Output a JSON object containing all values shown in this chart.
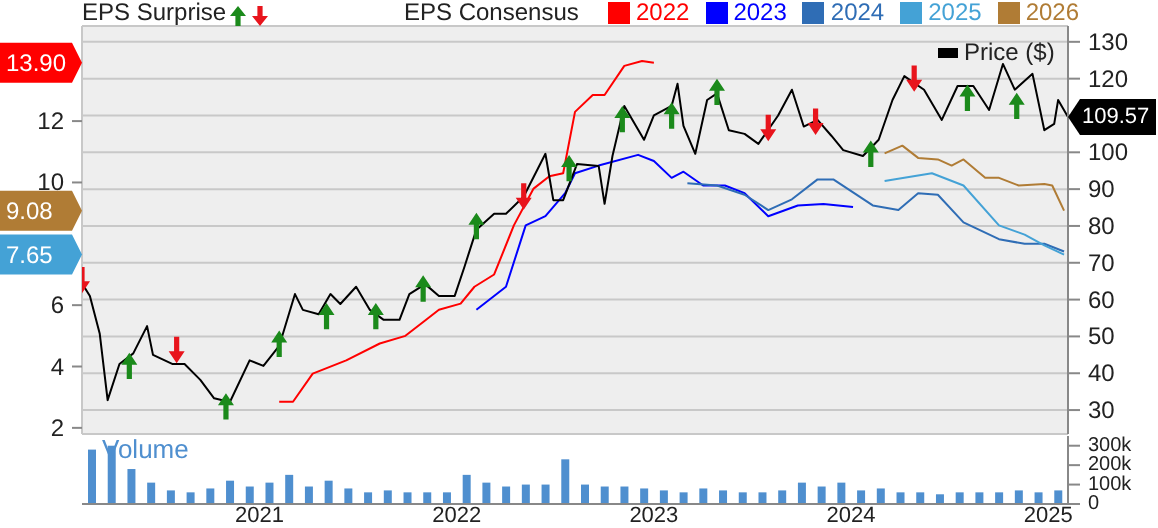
{
  "chart_data": [
    {
      "type": "line",
      "title": "EPS Surprise",
      "legend_title": "EPS Consensus",
      "legend": "top",
      "grid": true,
      "tick_labels": "y",
      "xlim": [
        2020.1,
        2025.1
      ],
      "xticks": [
        2021,
        2022,
        2023,
        2024,
        2025
      ],
      "ylim": [
        1.8,
        15.1
      ],
      "yticks": [
        2,
        4,
        6,
        10,
        12
      ],
      "y2lim": [
        23.5,
        134.3
      ],
      "y2ticks": [
        30,
        40,
        50,
        60,
        70,
        80,
        90,
        100,
        {
          "value": 110,
          "label": null
        },
        120,
        130
      ],
      "annotations": [
        "13.90",
        "9.08",
        "7.65"
      ],
      "series": [
        {
          "name": "2022",
          "color": "#ff0000",
          "x": [
            2021.1,
            2021.17,
            2021.27,
            2021.44,
            2021.61,
            2021.74,
            2021.84,
            2021.91,
            2022.02,
            2022.09,
            2022.19,
            2022.29,
            2022.39,
            2022.47,
            2022.54,
            2022.6,
            2022.69,
            2022.75,
            2022.85,
            2022.94,
            2023.0
          ],
          "values": [
            2.85,
            2.85,
            3.77,
            4.2,
            4.75,
            5.0,
            5.5,
            5.85,
            6.05,
            6.6,
            7.0,
            8.6,
            9.8,
            10.2,
            10.3,
            12.3,
            12.85,
            12.85,
            13.8,
            13.96,
            13.9
          ]
        },
        {
          "name": "2023",
          "color": "#0000ff",
          "x": [
            2022.1,
            2022.25,
            2022.35,
            2022.45,
            2022.55,
            2022.6,
            2022.72,
            2022.92,
            2023.0,
            2023.09,
            2023.15,
            2023.25,
            2023.36,
            2023.46,
            2023.58,
            2023.73,
            2023.86,
            2024.01
          ],
          "values": [
            5.85,
            6.6,
            8.6,
            8.9,
            9.65,
            10.3,
            10.55,
            10.9,
            10.7,
            10.15,
            10.35,
            9.9,
            9.9,
            9.65,
            8.9,
            9.25,
            9.3,
            9.2
          ]
        },
        {
          "name": "2024",
          "color": "#2f6db5",
          "x": [
            2023.17,
            2023.32,
            2023.46,
            2023.58,
            2023.7,
            2023.83,
            2023.91,
            2024.11,
            2024.24,
            2024.34,
            2024.44,
            2024.57,
            2024.75,
            2024.88,
            2024.98,
            2025.08
          ],
          "values": [
            9.97,
            9.9,
            9.6,
            9.1,
            9.45,
            10.1,
            10.1,
            9.25,
            9.1,
            9.65,
            9.6,
            8.7,
            8.15,
            8.0,
            8.0,
            7.75
          ]
        },
        {
          "name": "2025",
          "color": "#44a2d6",
          "x": [
            2024.17,
            2024.27,
            2024.41,
            2024.57,
            2024.75,
            2024.88,
            2024.98,
            2025.08
          ],
          "values": [
            10.05,
            10.15,
            10.3,
            9.9,
            8.6,
            8.3,
            7.95,
            7.65
          ]
        },
        {
          "name": "2026",
          "color": "#b07c35",
          "x": [
            2024.17,
            2024.26,
            2024.34,
            2024.44,
            2024.51,
            2024.57,
            2024.68,
            2024.75,
            2024.85,
            2024.98,
            2025.02,
            2025.08
          ],
          "values": [
            10.95,
            11.2,
            10.8,
            10.75,
            10.55,
            10.75,
            10.15,
            10.15,
            9.9,
            9.95,
            9.9,
            9.08
          ]
        },
        {
          "name": "Price ($)",
          "color": "#000000",
          "axis": "y2",
          "x": [
            2020.1,
            2020.14,
            2020.19,
            2020.23,
            2020.29,
            2020.36,
            2020.43,
            2020.46,
            2020.56,
            2020.62,
            2020.7,
            2020.77,
            2020.85,
            2020.95,
            2021.02,
            2021.1,
            2021.18,
            2021.22,
            2021.3,
            2021.36,
            2021.41,
            2021.49,
            2021.56,
            2021.63,
            2021.71,
            2021.76,
            2021.84,
            2021.91,
            2021.99,
            2022.04,
            2022.1,
            2022.19,
            2022.25,
            2022.34,
            2022.45,
            2022.49,
            2022.54,
            2022.61,
            2022.72,
            2022.75,
            2022.79,
            2022.85,
            2022.95,
            2023.0,
            2023.09,
            2023.12,
            2023.15,
            2023.21,
            2023.27,
            2023.32,
            2023.38,
            2023.46,
            2023.53,
            2023.63,
            2023.7,
            2023.76,
            2023.83,
            2023.9,
            2023.96,
            2024.06,
            2024.14,
            2024.21,
            2024.27,
            2024.37,
            2024.46,
            2024.54,
            2024.62,
            2024.7,
            2024.77,
            2024.83,
            2024.92,
            2024.98,
            2025.03,
            2025.05,
            2025.1
          ],
          "values": [
            64.4,
            61,
            50.7,
            32.7,
            42.5,
            45.4,
            52.8,
            45,
            42.5,
            42.5,
            38.2,
            33.2,
            32.2,
            43.5,
            42,
            47.4,
            61.5,
            57.2,
            56,
            61.5,
            58.8,
            63.5,
            57.2,
            54.5,
            54.5,
            61.5,
            64.2,
            61,
            61,
            69,
            79,
            83.3,
            83.3,
            88,
            99.6,
            87,
            87,
            96.8,
            96.3,
            86,
            99,
            112.6,
            103.4,
            110,
            112.6,
            118.6,
            107.2,
            99.6,
            114.2,
            116,
            106,
            105,
            102.3,
            110,
            117,
            107,
            108.8,
            104.5,
            100.6,
            99,
            103.4,
            114.2,
            120.7,
            117,
            108.8,
            118,
            118,
            111.5,
            124,
            117,
            121.3,
            106,
            107.7,
            114.2,
            109.57
          ],
          "value_labels": [
            null,
            null,
            null,
            null,
            null,
            null,
            null,
            null,
            null,
            null,
            null,
            null,
            null,
            null,
            null,
            null,
            null,
            null,
            null,
            null,
            null,
            null,
            null,
            null,
            null,
            null,
            null,
            null,
            null,
            null,
            null,
            null,
            null,
            null,
            null,
            null,
            null,
            null,
            null,
            null,
            null,
            null,
            null,
            null,
            null,
            null,
            null,
            null,
            null,
            null,
            null,
            null,
            null,
            null,
            null,
            null,
            null,
            null,
            null,
            null,
            null,
            null,
            null,
            null,
            null,
            null,
            null,
            null,
            null,
            null,
            null,
            null,
            null,
            null,
            "109.57"
          ]
        },
        {
          "type": "scatter",
          "color": "#1b8a1b",
          "axis": "y2",
          "x": [
            2020.34,
            2020.83,
            2021.1,
            2021.34,
            2021.59,
            2021.83,
            2022.1,
            2022.57,
            2022.84,
            2023.09,
            2023.32,
            2024.1,
            2024.59,
            2024.84
          ],
          "values": [
            42,
            31,
            48,
            55.5,
            55.5,
            63,
            80,
            95.7,
            109,
            110,
            116.4,
            99.6,
            114.8,
            112.6
          ]
        },
        {
          "type": "scatter",
          "color": "#e8141c",
          "axis": "y2",
          "x": [
            2020.1,
            2020.58,
            2022.34,
            2023.58,
            2023.82,
            2024.32
          ],
          "values": [
            65.3,
            46.3,
            88,
            106.6,
            108.3,
            120
          ]
        }
      ]
    },
    {
      "type": "bar",
      "ylabel": "Volume",
      "tick_labels": "xy",
      "xlim": [
        2020.1,
        2025.1
      ],
      "xticks": [
        2021,
        2022,
        2023,
        2024,
        2025
      ],
      "ylim": [
        0,
        350000
      ],
      "yticks": [
        0,
        {
          "value": 100000,
          "label": "100k"
        },
        {
          "value": 200000,
          "label": "200k"
        },
        {
          "value": 300000,
          "label": "300k"
        }
      ],
      "series": [
        {
          "color": "#4f8fcf",
          "x": [
            2020.15,
            2020.25,
            2020.35,
            2020.45,
            2020.55,
            2020.65,
            2020.75,
            2020.85,
            2020.95,
            2021.05,
            2021.15,
            2021.25,
            2021.35,
            2021.45,
            2021.55,
            2021.65,
            2021.75,
            2021.85,
            2021.95,
            2022.05,
            2022.15,
            2022.25,
            2022.35,
            2022.45,
            2022.55,
            2022.65,
            2022.75,
            2022.85,
            2022.95,
            2023.05,
            2023.15,
            2023.25,
            2023.35,
            2023.45,
            2023.55,
            2023.65,
            2023.75,
            2023.85,
            2023.95,
            2024.05,
            2024.15,
            2024.25,
            2024.35,
            2024.45,
            2024.55,
            2024.65,
            2024.75,
            2024.85,
            2024.95,
            2025.05
          ],
          "values": [
            280000,
            300000,
            180000,
            110000,
            70000,
            60000,
            80000,
            120000,
            90000,
            110000,
            150000,
            90000,
            120000,
            80000,
            60000,
            70000,
            60000,
            60000,
            60000,
            150000,
            110000,
            90000,
            100000,
            100000,
            230000,
            100000,
            90000,
            90000,
            80000,
            70000,
            60000,
            80000,
            70000,
            60000,
            60000,
            70000,
            110000,
            90000,
            110000,
            70000,
            80000,
            60000,
            60000,
            50000,
            60000,
            60000,
            60000,
            70000,
            60000,
            70000
          ]
        }
      ]
    }
  ]
}
